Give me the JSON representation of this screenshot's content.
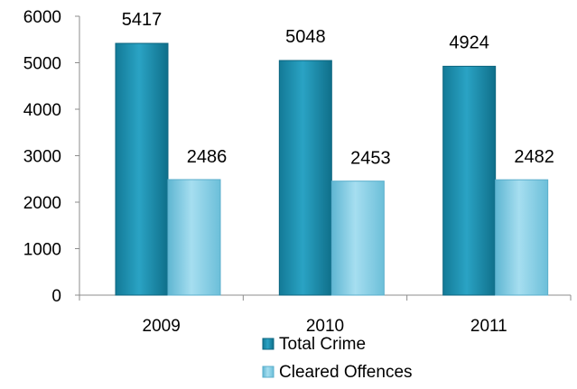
{
  "chart_data": {
    "type": "bar",
    "categories": [
      "2009",
      "2010",
      "2011"
    ],
    "series": [
      {
        "name": "Total Crime",
        "values": [
          5417,
          5048,
          4924
        ],
        "color": "#1b8fb0"
      },
      {
        "name": "Cleared Offences",
        "values": [
          2486,
          2453,
          2482
        ],
        "color": "#7fcbe3"
      }
    ],
    "ylim": [
      0,
      6000
    ],
    "yticks": [
      "0",
      "1000",
      "2000",
      "3000",
      "4000",
      "5000",
      "6000"
    ],
    "data_labels": [
      [
        "5417",
        "5048",
        "4924"
      ],
      [
        "2486",
        "2453",
        "2482"
      ]
    ],
    "grid": false,
    "legend_position": "bottom"
  }
}
